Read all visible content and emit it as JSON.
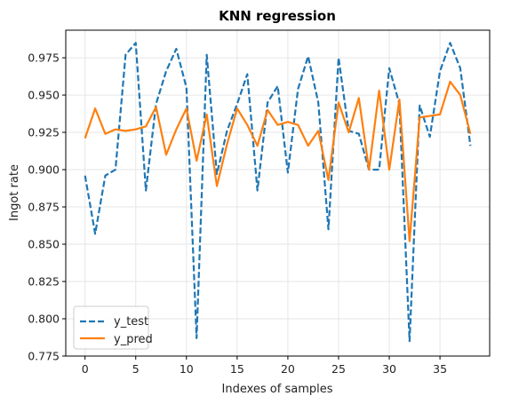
{
  "chart_data": {
    "type": "line",
    "title": "KNN regression",
    "xlabel": "Indexes of samples",
    "ylabel": "Ingot rate",
    "xlim": [
      -1.9,
      39.9
    ],
    "ylim": [
      0.775,
      0.9935
    ],
    "x_ticks": [
      0,
      5,
      10,
      15,
      20,
      25,
      30,
      35
    ],
    "y_ticks": [
      0.775,
      0.8,
      0.825,
      0.85,
      0.875,
      0.9,
      0.925,
      0.95,
      0.975
    ],
    "grid": true,
    "legend_position": "lower-left",
    "x": [
      0,
      1,
      2,
      3,
      4,
      5,
      6,
      7,
      8,
      9,
      10,
      11,
      12,
      13,
      14,
      15,
      16,
      17,
      18,
      19,
      20,
      21,
      22,
      23,
      24,
      25,
      26,
      27,
      28,
      29,
      30,
      31,
      32,
      33,
      34,
      35,
      36,
      37,
      38
    ],
    "series": [
      {
        "name": "y_test",
        "color": "#1f77b4",
        "style": "dashed",
        "values": [
          0.896,
          0.857,
          0.896,
          0.9,
          0.977,
          0.985,
          0.886,
          0.944,
          0.966,
          0.981,
          0.955,
          0.787,
          0.977,
          0.897,
          0.926,
          0.944,
          0.964,
          0.886,
          0.945,
          0.956,
          0.898,
          0.954,
          0.976,
          0.945,
          0.86,
          0.975,
          0.926,
          0.924,
          0.9,
          0.9,
          0.968,
          0.944,
          0.785,
          0.943,
          0.922,
          0.966,
          0.985,
          0.968,
          0.916
        ]
      },
      {
        "name": "y_pred",
        "color": "#ff7f0e",
        "style": "solid",
        "values": [
          0.921,
          0.941,
          0.924,
          0.927,
          0.926,
          0.927,
          0.929,
          0.942,
          0.91,
          0.927,
          0.941,
          0.906,
          0.937,
          0.889,
          0.917,
          0.941,
          0.93,
          0.916,
          0.94,
          0.93,
          0.932,
          0.93,
          0.916,
          0.926,
          0.893,
          0.945,
          0.925,
          0.948,
          0.9,
          0.953,
          0.9,
          0.947,
          0.852,
          0.935,
          0.936,
          0.937,
          0.959,
          0.95,
          0.924
        ]
      }
    ]
  }
}
